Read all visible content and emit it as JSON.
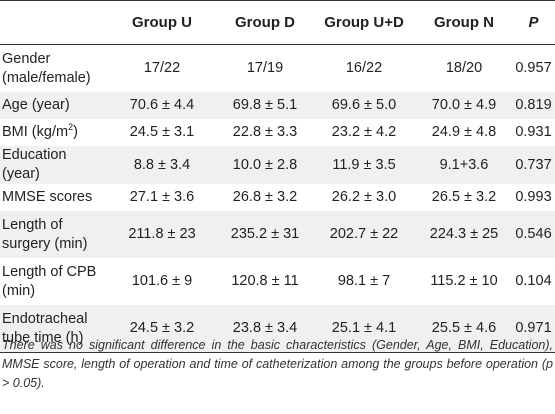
{
  "table": {
    "headers": [
      "",
      "Group U",
      "Group D",
      "Group U+D",
      "Group N",
      "P"
    ],
    "rows": [
      {
        "label": "Gender (male/female)",
        "u": "17/22",
        "d": "17/19",
        "ud": "16/22",
        "n": "18/20",
        "p": "0.957"
      },
      {
        "label": "Age (year)",
        "u": "70.6 ± 4.4",
        "d": "69.8 ± 5.1",
        "ud": "69.6 ± 5.0",
        "n": "70.0 ± 4.9",
        "p": "0.819"
      },
      {
        "label_main": "BMI (kg/m",
        "label_sup": "2",
        "label_tail": ")",
        "u": "24.5 ± 3.1",
        "d": "22.8 ± 3.3",
        "ud": "23.2 ± 4.2",
        "n": "24.9 ± 4.8",
        "p": "0.931"
      },
      {
        "label": "Education (year)",
        "u": "8.8 ± 3.4",
        "d": "10.0 ± 2.8",
        "ud": "11.9 ± 3.5",
        "n": "9.1+3.6",
        "p": "0.737"
      },
      {
        "label": "MMSE scores",
        "u": "27.1 ± 3.6",
        "d": "26.8 ± 3.2",
        "ud": "26.2 ± 3.0",
        "n": "26.5 ± 3.2",
        "p": "0.993"
      },
      {
        "label": "Length of surgery (min)",
        "u": "211.8 ± 23",
        "d": "235.2 ± 31",
        "ud": "202.7 ± 22",
        "n": "224.3 ± 25",
        "p": "0.546"
      },
      {
        "label": "Length of CPB (min)",
        "u": "101.6 ± 9",
        "d": "120.8 ± 11",
        "ud": "98.1 ± 7",
        "n": "115.2 ± 10",
        "p": "0.104"
      },
      {
        "label": "Endotracheal tube time (h)",
        "u": "24.5 ± 3.2",
        "d": "23.8 ± 3.4",
        "ud": "25.1 ± 4.1",
        "n": "25.5 ± 4.6",
        "p": "0.971"
      }
    ]
  },
  "footnote": "There was no significant difference in the basic characteristics (Gender, Age, BMI, Education), MMSE score, length of operation and time of catheterization among the groups before operation (p > 0.05)."
}
